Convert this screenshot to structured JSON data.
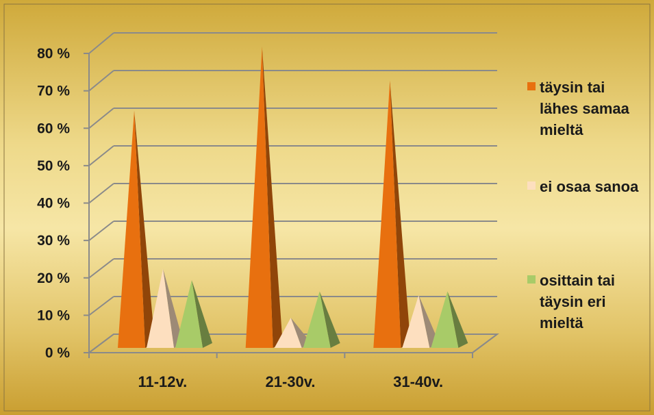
{
  "chart_data": {
    "type": "bar",
    "style": "3d-pyramid",
    "categories": [
      "11-12v.",
      "21-30v.",
      "31-40v."
    ],
    "series": [
      {
        "name": "täysin tai lähes samaa mieltä",
        "values": [
          63,
          80,
          71
        ],
        "color": "#E8700F"
      },
      {
        "name": "ei osaa sanoa",
        "values": [
          21,
          8,
          14
        ],
        "color": "#FDDFBF"
      },
      {
        "name": "osittain tai täysin eri mieltä",
        "values": [
          18,
          15,
          15
        ],
        "color": "#A8CB68"
      }
    ],
    "ylim": [
      0,
      80
    ],
    "yticks": [
      "0 %",
      "10 %",
      "20 %",
      "30 %",
      "40 %",
      "50 %",
      "60 %",
      "70 %",
      "80 %"
    ],
    "grid": true,
    "legend": "right",
    "background": "#D9B84A"
  }
}
